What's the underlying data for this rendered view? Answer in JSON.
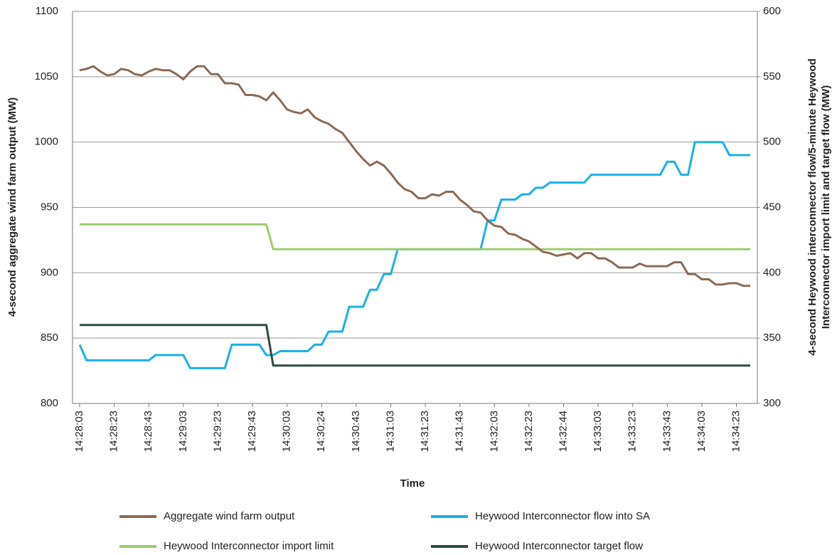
{
  "chart_data": {
    "type": "line",
    "xlabel": "Time",
    "ylabel": "4-second aggregate wind farm output (MW)",
    "y2label": [
      "4-second Heywood interconnector flow/5-minute Heywood",
      "Interconnector import limit and target flow (MW)"
    ],
    "categories": [
      "14:28:03",
      null,
      null,
      null,
      null,
      "14:28:23",
      null,
      null,
      null,
      null,
      "14:28:43",
      null,
      null,
      null,
      null,
      "14:29:03",
      null,
      null,
      null,
      null,
      "14:29:23",
      null,
      null,
      null,
      null,
      "14:29:43",
      null,
      null,
      null,
      null,
      "14:30:03",
      null,
      null,
      null,
      null,
      "14:30:24",
      null,
      null,
      null,
      null,
      "14:30:43",
      null,
      null,
      null,
      null,
      "14:31:03",
      null,
      null,
      null,
      null,
      "14:31:23",
      null,
      null,
      null,
      null,
      "14:31:43",
      null,
      null,
      null,
      null,
      "14:32:03",
      null,
      null,
      null,
      null,
      "14:32:23",
      null,
      null,
      null,
      null,
      "14:32:44",
      null,
      null,
      null,
      null,
      "14:33:03",
      null,
      null,
      null,
      null,
      "14:33:23",
      null,
      null,
      null,
      null,
      "14:33:43",
      null,
      null,
      null,
      null,
      "14:34:03",
      null,
      null,
      null,
      null,
      "14:34:23",
      null,
      null
    ],
    "ylim": [
      800,
      1100
    ],
    "yticks": [
      800,
      850,
      900,
      950,
      1000,
      1050,
      1100
    ],
    "y2lim": [
      300,
      600
    ],
    "y2ticks": [
      300,
      350,
      400,
      450,
      500,
      550,
      600
    ],
    "grid": true,
    "legend": "bottom",
    "series": [
      {
        "name": "Aggregate wind farm output",
        "color": "#8b6b55",
        "axis": "y",
        "values": [
          1055,
          1056,
          1058,
          1054,
          1051,
          1052,
          1056,
          1055,
          1052,
          1051,
          1054,
          1056,
          1055,
          1055,
          1052,
          1048,
          1054,
          1058,
          1058,
          1052,
          1052,
          1045,
          1045,
          1044,
          1036,
          1036,
          1035,
          1032,
          1038,
          1032,
          1025,
          1023,
          1022,
          1025,
          1019,
          1016,
          1014,
          1010,
          1007,
          1000,
          993,
          987,
          982,
          985,
          982,
          976,
          969,
          964,
          962,
          957,
          957,
          960,
          959,
          962,
          962,
          956,
          952,
          947,
          946,
          940,
          936,
          935,
          930,
          929,
          926,
          924,
          920,
          916,
          915,
          913,
          914,
          915,
          911,
          915,
          915,
          911,
          911,
          908,
          904,
          904,
          904,
          907,
          905,
          905,
          905,
          905,
          908,
          908,
          899,
          899,
          895,
          895,
          891,
          891,
          892,
          892,
          890,
          890
        ]
      },
      {
        "name": "Heywood Interconnector flow into SA",
        "color": "#1bb0e8",
        "axis": "y2",
        "values": [
          345,
          333,
          333,
          333,
          333,
          333,
          333,
          333,
          333,
          333,
          333,
          337,
          337,
          337,
          337,
          337,
          327,
          327,
          327,
          327,
          327,
          327,
          345,
          345,
          345,
          345,
          345,
          337,
          337,
          340,
          340,
          340,
          340,
          340,
          345,
          345,
          355,
          355,
          355,
          374,
          374,
          374,
          387,
          387,
          399,
          399,
          418,
          418,
          418,
          418,
          418,
          418,
          418,
          418,
          418,
          418,
          418,
          418,
          418,
          440,
          440,
          456,
          456,
          456,
          460,
          460,
          465,
          465,
          469,
          469,
          469,
          469,
          469,
          469,
          475,
          475,
          475,
          475,
          475,
          475,
          475,
          475,
          475,
          475,
          475,
          485,
          485,
          475,
          475,
          500,
          500,
          500,
          500,
          500,
          490,
          490,
          490,
          490
        ]
      },
      {
        "name": "Heywood Interconnector import limit",
        "color": "#9ccc6e",
        "axis": "y2",
        "values": [
          437,
          437,
          437,
          437,
          437,
          437,
          437,
          437,
          437,
          437,
          437,
          437,
          437,
          437,
          437,
          437,
          437,
          437,
          437,
          437,
          437,
          437,
          437,
          437,
          437,
          437,
          437,
          437,
          418,
          418,
          418,
          418,
          418,
          418,
          418,
          418,
          418,
          418,
          418,
          418,
          418,
          418,
          418,
          418,
          418,
          418,
          418,
          418,
          418,
          418,
          418,
          418,
          418,
          418,
          418,
          418,
          418,
          418,
          418,
          418,
          418,
          418,
          418,
          418,
          418,
          418,
          418,
          418,
          418,
          418,
          418,
          418,
          418,
          418,
          418,
          418,
          418,
          418,
          418,
          418,
          418,
          418,
          418,
          418,
          418,
          418,
          418,
          418,
          418,
          418,
          418,
          418,
          418,
          418,
          418,
          418,
          418,
          418
        ]
      },
      {
        "name": "Heywood Interconnector target flow",
        "color": "#2d4d3f",
        "axis": "y2",
        "values": [
          360,
          360,
          360,
          360,
          360,
          360,
          360,
          360,
          360,
          360,
          360,
          360,
          360,
          360,
          360,
          360,
          360,
          360,
          360,
          360,
          360,
          360,
          360,
          360,
          360,
          360,
          360,
          360,
          329,
          329,
          329,
          329,
          329,
          329,
          329,
          329,
          329,
          329,
          329,
          329,
          329,
          329,
          329,
          329,
          329,
          329,
          329,
          329,
          329,
          329,
          329,
          329,
          329,
          329,
          329,
          329,
          329,
          329,
          329,
          329,
          329,
          329,
          329,
          329,
          329,
          329,
          329,
          329,
          329,
          329,
          329,
          329,
          329,
          329,
          329,
          329,
          329,
          329,
          329,
          329,
          329,
          329,
          329,
          329,
          329,
          329,
          329,
          329,
          329,
          329,
          329,
          329,
          329,
          329,
          329,
          329,
          329,
          329
        ]
      }
    ]
  }
}
